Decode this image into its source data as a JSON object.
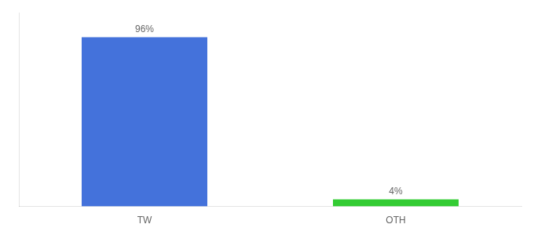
{
  "chart_data": {
    "type": "bar",
    "categories": [
      "TW",
      "OTH"
    ],
    "values": [
      96,
      4
    ],
    "value_labels": [
      "96%",
      "4%"
    ],
    "colors": [
      "#4472db",
      "#33cc33"
    ],
    "ylim": [
      0,
      110
    ],
    "yticks": [],
    "grid": false,
    "data_labels": true,
    "tick_labels": "x"
  }
}
